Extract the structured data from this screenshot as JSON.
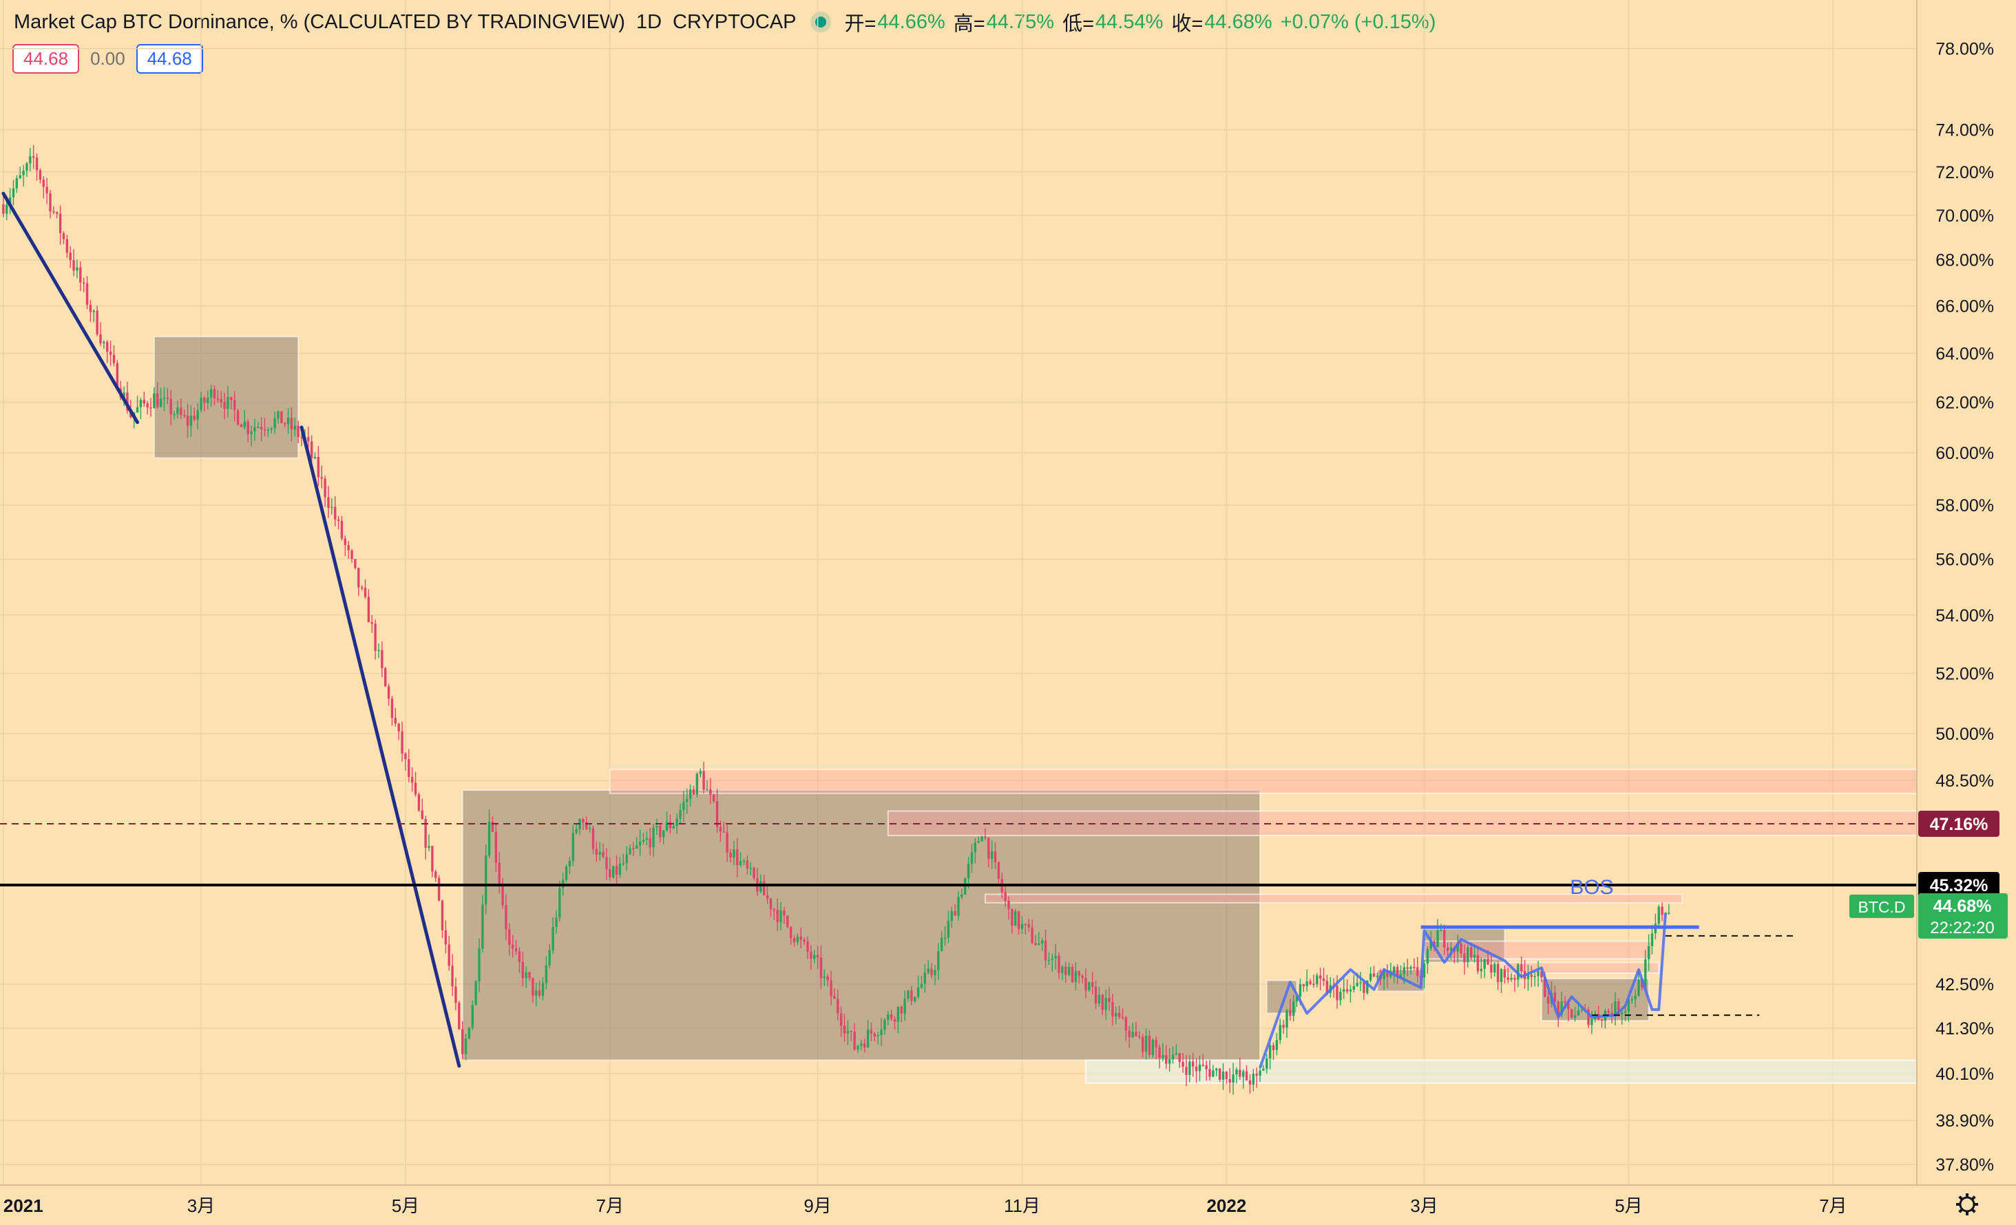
{
  "header": {
    "symbol_title": "Market Cap BTC Dominance, % (CALCULATED BY TRADINGVIEW)",
    "interval": "1D",
    "exchange": "CRYPTOCAP",
    "ohlc": [
      {
        "label": "开=",
        "value": "44.66%"
      },
      {
        "label": "高=",
        "value": "44.75%"
      },
      {
        "label": "低=",
        "value": "44.54%"
      },
      {
        "label": "收=",
        "value": "44.68%"
      }
    ],
    "change": "+0.07% (+0.15%)"
  },
  "pills": {
    "left": "44.68",
    "middle": "0.00",
    "right": "44.68"
  },
  "colors": {
    "background": "#fee1b2",
    "up": "#26a65b",
    "down": "#e0446a",
    "trendline": "#1f2f8a",
    "structure": "#4a6cf0",
    "zone_gray": "#8b7b70",
    "zone_pink": "#ffb6b6",
    "zone_light": "#e8f0e0"
  },
  "chart_data": {
    "type": "candlestick",
    "y_scale": "log",
    "ylim": [
      37.3,
      80.5
    ],
    "y_ticks": [
      "78.00%",
      "74.00%",
      "72.00%",
      "70.00%",
      "68.00%",
      "66.00%",
      "64.00%",
      "62.00%",
      "60.00%",
      "58.00%",
      "56.00%",
      "54.00%",
      "52.00%",
      "50.00%",
      "48.50%",
      "42.50%",
      "41.30%",
      "40.10%",
      "38.90%",
      "37.80%"
    ],
    "y_tick_values": [
      78,
      74,
      72,
      70,
      68,
      66,
      64,
      62,
      60,
      58,
      56,
      54,
      52,
      50,
      48.5,
      42.5,
      41.3,
      40.1,
      38.9,
      37.8
    ],
    "xlim": [
      "2020-12-31",
      "2022-07-26"
    ],
    "x_ticks": [
      {
        "date": "2021-01-01",
        "label": "2021",
        "bold": true
      },
      {
        "date": "2021-03-01",
        "label": "3月",
        "bold": false
      },
      {
        "date": "2021-05-01",
        "label": "5月",
        "bold": false
      },
      {
        "date": "2021-07-01",
        "label": "7月",
        "bold": false
      },
      {
        "date": "2021-09-01",
        "label": "9月",
        "bold": false
      },
      {
        "date": "2021-11-01",
        "label": "11月",
        "bold": false
      },
      {
        "date": "2022-01-01",
        "label": "2022",
        "bold": true
      },
      {
        "date": "2022-03-01",
        "label": "3月",
        "bold": false
      },
      {
        "date": "2022-05-01",
        "label": "5月",
        "bold": false
      },
      {
        "date": "2022-07-01",
        "label": "7月",
        "bold": false
      }
    ],
    "path": [
      [
        "2021-01-01",
        70.5
      ],
      [
        "2021-01-10",
        72.6
      ],
      [
        "2021-01-20",
        68.5
      ],
      [
        "2021-02-01",
        64
      ],
      [
        "2021-02-08",
        61.5
      ],
      [
        "2021-02-15",
        62.2
      ],
      [
        "2021-02-25",
        61.2
      ],
      [
        "2021-03-05",
        62.5
      ],
      [
        "2021-03-15",
        61
      ],
      [
        "2021-03-25",
        61.3
      ],
      [
        "2021-04-01",
        60.5
      ],
      [
        "2021-04-10",
        57.5
      ],
      [
        "2021-04-20",
        54
      ],
      [
        "2021-04-25",
        51.5
      ],
      [
        "2021-05-01",
        49
      ],
      [
        "2021-05-10",
        45.5
      ],
      [
        "2021-05-18",
        40.5
      ],
      [
        "2021-05-22",
        42.5
      ],
      [
        "2021-05-26",
        47.5
      ],
      [
        "2021-06-01",
        43.5
      ],
      [
        "2021-06-10",
        42
      ],
      [
        "2021-06-16",
        45
      ],
      [
        "2021-06-22",
        47.5
      ],
      [
        "2021-07-01",
        45.5
      ],
      [
        "2021-07-10",
        46.5
      ],
      [
        "2021-07-20",
        47.2
      ],
      [
        "2021-07-28",
        48.7
      ],
      [
        "2021-08-05",
        46.5
      ],
      [
        "2021-08-20",
        44.5
      ],
      [
        "2021-09-01",
        43
      ],
      [
        "2021-09-12",
        40.8
      ],
      [
        "2021-09-25",
        41.8
      ],
      [
        "2021-10-05",
        42.8
      ],
      [
        "2021-10-15",
        45.5
      ],
      [
        "2021-10-20",
        47
      ],
      [
        "2021-10-28",
        44.5
      ],
      [
        "2021-11-10",
        43.2
      ],
      [
        "2021-11-25",
        42
      ],
      [
        "2021-12-05",
        41
      ],
      [
        "2021-12-20",
        40.3
      ],
      [
        "2022-01-01",
        40.1
      ],
      [
        "2022-01-10",
        39.9
      ],
      [
        "2022-01-18",
        41.5
      ],
      [
        "2022-01-25",
        42.6
      ],
      [
        "2022-02-05",
        42.2
      ],
      [
        "2022-02-15",
        42.7
      ],
      [
        "2022-02-28",
        42.8
      ],
      [
        "2022-03-05",
        43.9
      ],
      [
        "2022-03-15",
        43.2
      ],
      [
        "2022-03-25",
        42.7
      ],
      [
        "2022-04-02",
        42.9
      ],
      [
        "2022-04-10",
        41.8
      ],
      [
        "2022-04-20",
        41.6
      ],
      [
        "2022-04-30",
        41.9
      ],
      [
        "2022-05-05",
        42.6
      ],
      [
        "2022-05-10",
        44.5
      ],
      [
        "2022-05-13",
        44.68
      ]
    ],
    "horizontal_lines": [
      {
        "value": 45.32,
        "label": "45.32%",
        "style": "solid",
        "color": "#000000"
      },
      {
        "value": 47.16,
        "label": "47.16%",
        "style": "dashed",
        "color": "#8a1c3d"
      }
    ],
    "price_tag": {
      "symbol": "BTC.D",
      "value": "44.68%",
      "countdown": "22:22:20",
      "y": 44.68
    },
    "annotations": [
      {
        "text": "BOS",
        "date": "2022-04-20",
        "y": 44.9
      }
    ],
    "zones": [
      {
        "x0": "2021-02-15",
        "x1": "2021-03-30",
        "y0": 59.8,
        "y1": 64.7,
        "kind": "gray"
      },
      {
        "x0": "2021-05-18",
        "x1": "2022-01-11",
        "y0": 40.45,
        "y1": 48.2,
        "kind": "gray"
      },
      {
        "x0": "2021-07-01",
        "x1": "2022-07-26",
        "y0": 48.1,
        "y1": 48.85,
        "kind": "pink"
      },
      {
        "x0": "2021-09-22",
        "x1": "2022-07-26",
        "y0": 46.8,
        "y1": 47.55,
        "kind": "pink"
      },
      {
        "x0": "2021-11-20",
        "x1": "2022-07-26",
        "y0": 39.85,
        "y1": 40.45,
        "kind": "light"
      },
      {
        "x0": "2021-10-21",
        "x1": "2022-05-17",
        "y0": 44.8,
        "y1": 45.05,
        "kind": "pink"
      },
      {
        "x0": "2022-01-13",
        "x1": "2022-01-22",
        "y0": 41.7,
        "y1": 42.6,
        "kind": "gray"
      },
      {
        "x0": "2022-02-15",
        "x1": "2022-03-01",
        "y0": 42.3,
        "y1": 42.9,
        "kind": "gray"
      },
      {
        "x0": "2022-03-01",
        "x1": "2022-03-25",
        "y0": 43.1,
        "y1": 44.05,
        "kind": "gray"
      },
      {
        "x0": "2022-04-05",
        "x1": "2022-05-07",
        "y0": 41.5,
        "y1": 42.65,
        "kind": "gray"
      },
      {
        "x0": "2022-03-01",
        "x1": "2022-05-08",
        "y0": 43.2,
        "y1": 43.7,
        "kind": "pink"
      },
      {
        "x0": "2022-03-25",
        "x1": "2022-05-10",
        "y0": 42.8,
        "y1": 43.1,
        "kind": "pink"
      }
    ],
    "trendlines": [
      {
        "from": [
          "2021-01-01",
          71.0
        ],
        "to": [
          "2021-02-10",
          61.2
        ]
      },
      {
        "from": [
          "2021-03-31",
          61.0
        ],
        "to": [
          "2021-05-17",
          40.3
        ]
      }
    ],
    "structure_line": [
      [
        "2022-01-11",
        40.25
      ],
      [
        "2022-01-20",
        42.55
      ],
      [
        "2022-01-25",
        41.7
      ],
      [
        "2022-02-07",
        42.9
      ],
      [
        "2022-02-14",
        42.35
      ],
      [
        "2022-02-17",
        42.9
      ],
      [
        "2022-02-28",
        42.4
      ],
      [
        "2022-03-01",
        44.0
      ],
      [
        "2022-03-07",
        43.1
      ],
      [
        "2022-03-12",
        43.75
      ],
      [
        "2022-03-25",
        43.15
      ],
      [
        "2022-03-30",
        42.7
      ],
      [
        "2022-04-05",
        42.95
      ],
      [
        "2022-04-10",
        41.6
      ],
      [
        "2022-04-14",
        42.15
      ],
      [
        "2022-04-20",
        41.6
      ],
      [
        "2022-04-27",
        41.65
      ],
      [
        "2022-04-30",
        41.9
      ],
      [
        "2022-05-04",
        42.9
      ],
      [
        "2022-05-08",
        41.8
      ],
      [
        "2022-05-10",
        41.8
      ],
      [
        "2022-05-12",
        44.5
      ]
    ],
    "bos_line": {
      "from": [
        "2022-02-28",
        44.1
      ],
      "to": [
        "2022-05-22",
        44.1
      ]
    },
    "level_lines": [
      {
        "from": [
          "2022-05-12",
          43.85
        ],
        "to": [
          "2022-06-19",
          43.85
        ]
      },
      {
        "from": [
          "2022-04-20",
          41.65
        ],
        "to": [
          "2022-06-09",
          41.65
        ]
      }
    ]
  }
}
